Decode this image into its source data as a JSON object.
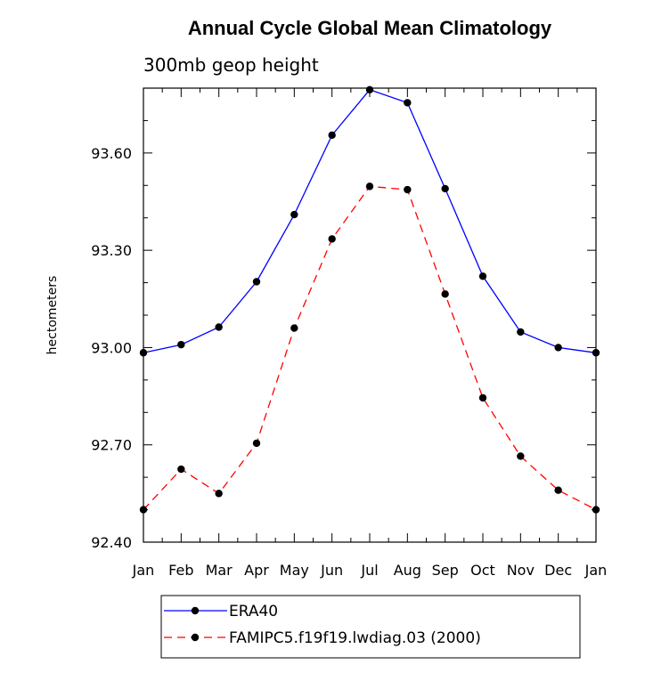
{
  "chart_data": {
    "type": "line",
    "title": "Annual Cycle Global Mean Climatology",
    "subtitle": "300mb geop height",
    "ylabel": "hectometers",
    "xlabel": "",
    "categories": [
      "Jan",
      "Feb",
      "Mar",
      "Apr",
      "May",
      "Jun",
      "Jul",
      "Aug",
      "Sep",
      "Oct",
      "Nov",
      "Dec",
      "Jan"
    ],
    "ylim": [
      92.4,
      93.8
    ],
    "yticks": [
      92.4,
      92.7,
      93.0,
      93.3,
      93.6
    ],
    "ytick_labels": [
      "92.40",
      "92.70",
      "93.00",
      "93.30",
      "93.60"
    ],
    "series": [
      {
        "name": "ERA40",
        "color": "#0000ff",
        "dash": "solid",
        "values": [
          92.984,
          93.009,
          93.063,
          93.203,
          93.41,
          93.655,
          93.795,
          93.755,
          93.49,
          93.22,
          93.048,
          93.0,
          92.984
        ]
      },
      {
        "name": "FAMIPC5.f19f19.lwdiag.03 (2000)",
        "color": "#ff0000",
        "dash": "dashed",
        "values": [
          92.5,
          92.625,
          92.55,
          92.705,
          93.06,
          93.335,
          93.497,
          93.487,
          93.165,
          92.845,
          92.665,
          92.56,
          92.5
        ]
      }
    ],
    "legend_position": "bottom"
  }
}
